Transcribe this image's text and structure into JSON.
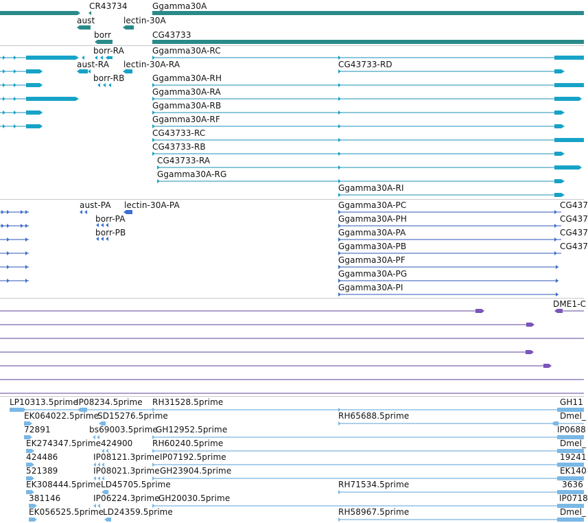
{
  "colors": {
    "gene": "#2a8a8a",
    "transcript": "#17a3c7",
    "transcript_line": "#1a8fb5",
    "protein": "#3a6fcf",
    "protein_line": "#2b55b5",
    "other": "#7b55b8",
    "other_line": "#5a3f9a",
    "est": "#7ab8e6",
    "est_line": "#5aa0d8",
    "border": "#c8c8c8"
  },
  "tracks": {
    "genes": {
      "labels": [
        {
          "name": "gene-label-cr43734",
          "text": "CR43734"
        },
        {
          "name": "gene-label-ggamma30a",
          "text": "Ggamma30A"
        },
        {
          "name": "gene-label-aust",
          "text": "aust"
        },
        {
          "name": "gene-label-lectin-30a",
          "text": "lectin-30A"
        },
        {
          "name": "gene-label-borr",
          "text": "borr"
        },
        {
          "name": "gene-label-cg43733",
          "text": "CG43733"
        }
      ]
    },
    "transcripts": {
      "labels": [
        {
          "name": "transcript-label-borr-ra",
          "text": "borr-RA"
        },
        {
          "name": "transcript-label-ggamma30a-rc",
          "text": "Ggamma30A-RC"
        },
        {
          "name": "transcript-label-aust-ra",
          "text": "aust-RA"
        },
        {
          "name": "transcript-label-lectin-30a-ra",
          "text": "lectin-30A-RA"
        },
        {
          "name": "transcript-label-cg43733-rd",
          "text": "CG43733-RD"
        },
        {
          "name": "transcript-label-borr-rb",
          "text": "borr-RB"
        },
        {
          "name": "transcript-label-ggamma30a-rh",
          "text": "Ggamma30A-RH"
        },
        {
          "name": "transcript-label-ggamma30a-ra",
          "text": "Ggamma30A-RA"
        },
        {
          "name": "transcript-label-ggamma30a-rb",
          "text": "Ggamma30A-RB"
        },
        {
          "name": "transcript-label-ggamma30a-rf",
          "text": "Ggamma30A-RF"
        },
        {
          "name": "transcript-label-cg43733-rc",
          "text": "CG43733-RC"
        },
        {
          "name": "transcript-label-cg43733-rb",
          "text": "CG43733-RB"
        },
        {
          "name": "transcript-label-cg43733-ra",
          "text": "CG43733-RA"
        },
        {
          "name": "transcript-label-ggamma30a-rg",
          "text": "Ggamma30A-RG"
        },
        {
          "name": "transcript-label-ggamma30a-ri",
          "text": "Ggamma30A-RI"
        }
      ]
    },
    "proteins": {
      "labels": [
        {
          "name": "protein-label-aust-pa",
          "text": "aust-PA"
        },
        {
          "name": "protein-label-lectin-30a-pa",
          "text": "lectin-30A-PA"
        },
        {
          "name": "protein-label-ggamma30a-pc",
          "text": "Ggamma30A-PC"
        },
        {
          "name": "protein-label-cg437-1",
          "text": "CG437"
        },
        {
          "name": "protein-label-borr-pa",
          "text": "borr-PA"
        },
        {
          "name": "protein-label-ggamma30a-ph",
          "text": "Ggamma30A-PH"
        },
        {
          "name": "protein-label-cg437-2",
          "text": "CG437"
        },
        {
          "name": "protein-label-borr-pb",
          "text": "borr-PB"
        },
        {
          "name": "protein-label-ggamma30a-pa",
          "text": "Ggamma30A-PA"
        },
        {
          "name": "protein-label-cg437-3",
          "text": "CG437"
        },
        {
          "name": "protein-label-ggamma30a-pb",
          "text": "Ggamma30A-PB"
        },
        {
          "name": "protein-label-cg437-4",
          "text": "CG437"
        },
        {
          "name": "protein-label-ggamma30a-pf",
          "text": "Ggamma30A-PF"
        },
        {
          "name": "protein-label-ggamma30a-pg",
          "text": "Ggamma30A-PG"
        },
        {
          "name": "protein-label-ggamma30a-pi",
          "text": "Ggamma30A-PI"
        }
      ]
    },
    "other": {
      "labels": [
        {
          "name": "other-label-dme1",
          "text": "DME1-C"
        }
      ]
    },
    "est": {
      "labels": [
        {
          "name": "est-label-lp10313",
          "text": "LP10313.5prime"
        },
        {
          "name": "est-label-ip08234",
          "text": "IP08234.5prime"
        },
        {
          "name": "est-label-rh31528",
          "text": "RH31528.5prime"
        },
        {
          "name": "est-label-gh11",
          "text": "GH11"
        },
        {
          "name": "est-label-ek064022",
          "text": "EK064022.5prime"
        },
        {
          "name": "est-label-sd15276",
          "text": "SD15276.5prime"
        },
        {
          "name": "est-label-rh65688",
          "text": "RH65688.5prime"
        },
        {
          "name": "est-label-dmel-1",
          "text": "Dmel_"
        },
        {
          "name": "est-label-72891",
          "text": "72891"
        },
        {
          "name": "est-label-bs69003",
          "text": "bs69003.5prime"
        },
        {
          "name": "est-label-gh12952",
          "text": "GH12952.5prime"
        },
        {
          "name": "est-label-ip0688",
          "text": "IP0688"
        },
        {
          "name": "est-label-ek274347",
          "text": "EK274347.5prime"
        },
        {
          "name": "est-label-424900",
          "text": "424900"
        },
        {
          "name": "est-label-rh60240",
          "text": "RH60240.5prime"
        },
        {
          "name": "est-label-dmel-2",
          "text": "Dmel_"
        },
        {
          "name": "est-label-424486",
          "text": "424486"
        },
        {
          "name": "est-label-ip08121",
          "text": "IP08121.3prime"
        },
        {
          "name": "est-label-ip07192",
          "text": "IP07192.5prime"
        },
        {
          "name": "est-label-19241",
          "text": "19241"
        },
        {
          "name": "est-label-521389",
          "text": "521389"
        },
        {
          "name": "est-label-ip08021",
          "text": "IP08021.3prime"
        },
        {
          "name": "est-label-gh23904",
          "text": "GH23904.5prime"
        },
        {
          "name": "est-label-ek140",
          "text": "EK140"
        },
        {
          "name": "est-label-ek308444",
          "text": "EK308444.5prime"
        },
        {
          "name": "est-label-ld45705",
          "text": "LD45705.5prime"
        },
        {
          "name": "est-label-rh71534",
          "text": "RH71534.5prime"
        },
        {
          "name": "est-label-3636",
          "text": "3636"
        },
        {
          "name": "est-label-381146",
          "text": "381146"
        },
        {
          "name": "est-label-ip06224",
          "text": "IP06224.3prime"
        },
        {
          "name": "est-label-gh20030",
          "text": "GH20030.5prime"
        },
        {
          "name": "est-label-ip0718",
          "text": "IP0718"
        },
        {
          "name": "est-label-ek056525",
          "text": "EK056525.5prime"
        },
        {
          "name": "est-label-ld24359",
          "text": "LD24359.5prime"
        },
        {
          "name": "est-label-rh58967",
          "text": "RH58967.5prime"
        },
        {
          "name": "est-label-dmel-3",
          "text": "Dmel_"
        }
      ]
    }
  }
}
